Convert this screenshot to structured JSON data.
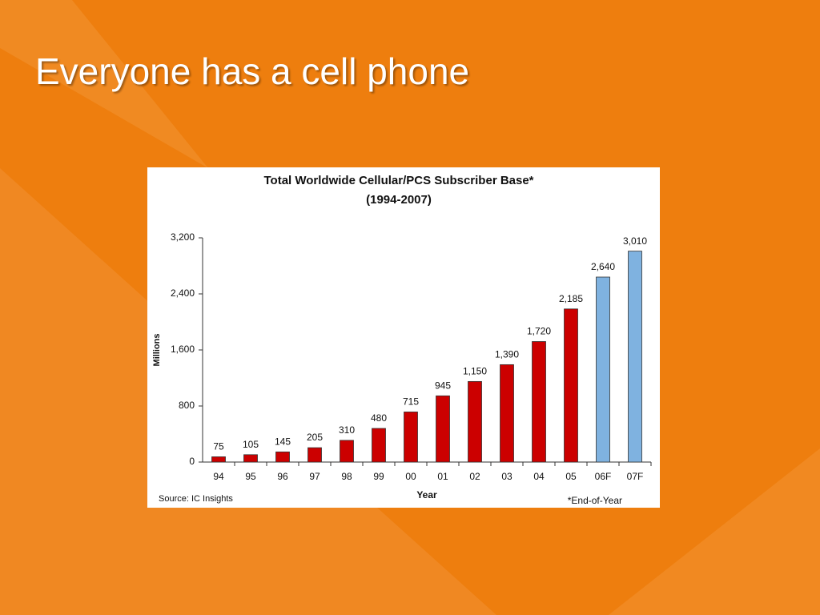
{
  "slide_title": "Everyone has a cell phone",
  "chart_data": {
    "type": "bar",
    "title": "Total Worldwide Cellular/PCS Subscriber Base*",
    "subtitle": "(1994-2007)",
    "y_label": "Millions",
    "x_label": "Year",
    "source": "Source: IC Insights",
    "footnote": "*End-of-Year",
    "categories": [
      "94",
      "95",
      "96",
      "97",
      "98",
      "99",
      "00",
      "01",
      "02",
      "03",
      "04",
      "05",
      "06F",
      "07F"
    ],
    "values": [
      75,
      105,
      145,
      205,
      310,
      480,
      715,
      945,
      1150,
      1390,
      1720,
      2185,
      2640,
      3010
    ],
    "value_labels": [
      "75",
      "105",
      "145",
      "205",
      "310",
      "480",
      "715",
      "945",
      "1,150",
      "1,390",
      "1,720",
      "2,185",
      "2,640",
      "3,010"
    ],
    "colors": [
      "#cc0000",
      "#cc0000",
      "#cc0000",
      "#cc0000",
      "#cc0000",
      "#cc0000",
      "#cc0000",
      "#cc0000",
      "#cc0000",
      "#cc0000",
      "#cc0000",
      "#cc0000",
      "#7fb2e0",
      "#7fb2e0"
    ],
    "ylim": [
      0,
      3200
    ],
    "yticks": [
      0,
      800,
      {
        "value": 1600,
        "label": "1,600"
      },
      {
        "value": 2400,
        "label": "2,400"
      },
      {
        "value": 3200,
        "label": "3,200"
      }
    ]
  }
}
